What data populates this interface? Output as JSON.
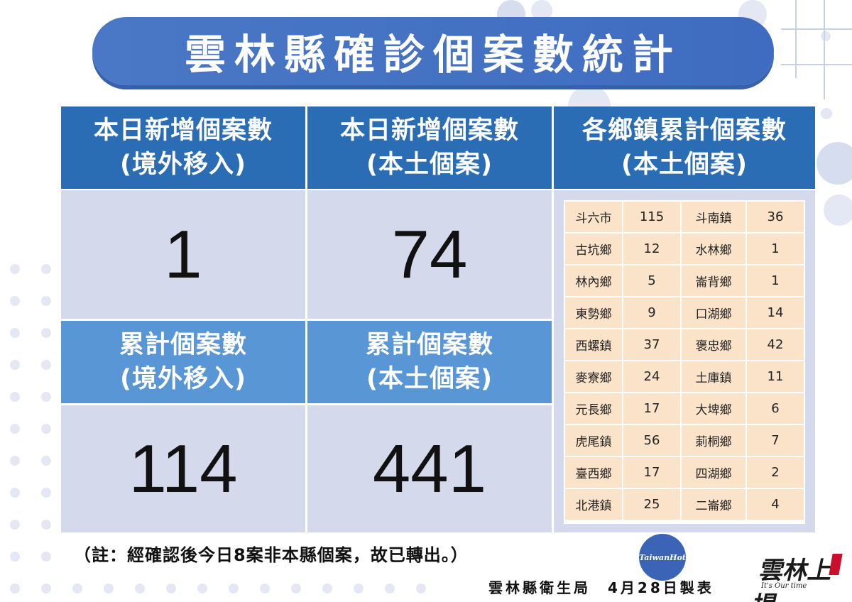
{
  "title": "雲林縣確診個案數統計",
  "headers": {
    "today_imported": [
      "本日新增個案數",
      "(境外移入)"
    ],
    "today_local": [
      "本日新增個案數",
      "(本土個案)"
    ],
    "town_cumulative": [
      "各鄉鎮累計個案數",
      "(本土個案)"
    ],
    "total_imported": [
      "累計個案數",
      "(境外移入)"
    ],
    "total_local": [
      "累計個案數",
      "(本土個案)"
    ]
  },
  "values": {
    "today_imported": "1",
    "today_local": "74",
    "total_imported": "114",
    "total_local": "441"
  },
  "towns": [
    {
      "name": "斗六市",
      "count": "115"
    },
    {
      "name": "斗南鎮",
      "count": "36"
    },
    {
      "name": "古坑鄉",
      "count": "12"
    },
    {
      "name": "水林鄉",
      "count": "1"
    },
    {
      "name": "林內鄉",
      "count": "5"
    },
    {
      "name": "崙背鄉",
      "count": "1"
    },
    {
      "name": "東勢鄉",
      "count": "9"
    },
    {
      "name": "口湖鄉",
      "count": "14"
    },
    {
      "name": "西螺鎮",
      "count": "37"
    },
    {
      "name": "褒忠鄉",
      "count": "42"
    },
    {
      "name": "麥寮鄉",
      "count": "24"
    },
    {
      "name": "土庫鎮",
      "count": "11"
    },
    {
      "name": "元長鄉",
      "count": "17"
    },
    {
      "name": "大埤鄉",
      "count": "6"
    },
    {
      "name": "虎尾鎮",
      "count": "56"
    },
    {
      "name": "莿桐鄉",
      "count": "7"
    },
    {
      "name": "臺西鄉",
      "count": "17"
    },
    {
      "name": "四湖鄉",
      "count": "2"
    },
    {
      "name": "北港鎮",
      "count": "25"
    },
    {
      "name": "二崙鄉",
      "count": "4"
    }
  ],
  "note": "（註：經確認後今日8案非本縣個案，故已轉出。）",
  "footer": {
    "agency": "雲林縣衛生局",
    "date": "4月28日製表"
  },
  "badge_text": "TaiwanHot",
  "logo": {
    "mark": "雲林上場",
    "tagline": "It's Our time"
  },
  "colors": {
    "title_bg": "#4a78c6",
    "header_dark": "#2b6db5",
    "header_light": "#5896d5",
    "value_bg": "#d4d9ec",
    "town_cell_bg": "#fbe3c9"
  }
}
